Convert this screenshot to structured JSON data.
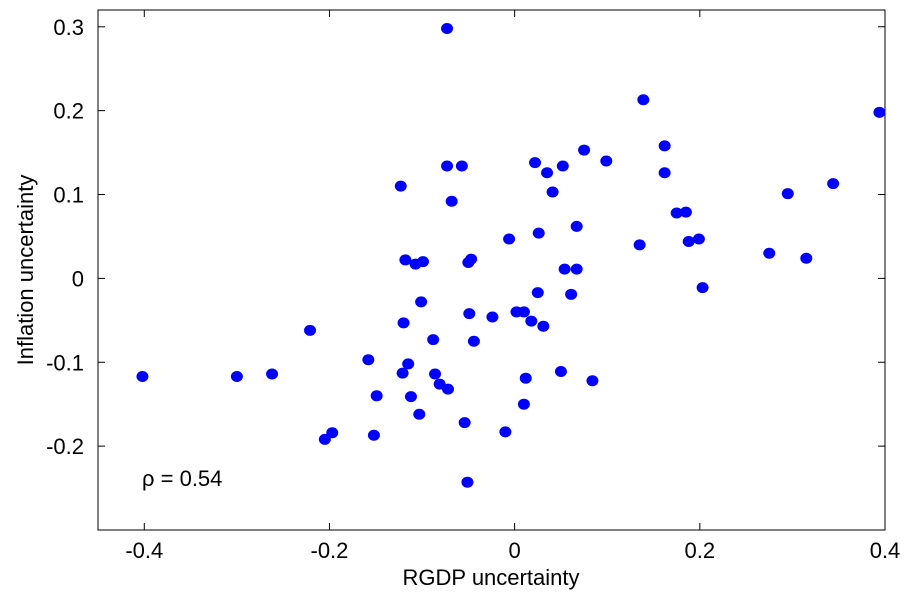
{
  "chart_data": {
    "type": "scatter",
    "xlabel": "RGDP uncertainty",
    "ylabel": "Inflation uncertainty",
    "annotation": "ρ = 0.54",
    "color": "#0000ff",
    "xlim": [
      -0.45,
      0.4
    ],
    "ylim": [
      -0.3,
      0.32
    ],
    "xticks": [
      -0.4,
      -0.2,
      0,
      0.2,
      0.4
    ],
    "yticks": [
      -0.2,
      -0.1,
      0,
      0.1,
      0.2,
      0.3
    ],
    "x": [
      -0.073,
      0.139,
      0.394,
      0.162,
      0.075,
      0.099,
      0.022,
      0.052,
      -0.073,
      -0.057,
      0.035,
      0.162,
      0.344,
      -0.123,
      0.041,
      0.295,
      -0.068,
      0.175,
      0.185,
      0.067,
      0.026,
      0.188,
      0.199,
      0.135,
      -0.006,
      -0.047,
      -0.05,
      -0.118,
      -0.107,
      -0.099,
      0.275,
      0.315,
      0.054,
      0.067,
      0.203,
      0.025,
      0.061,
      -0.101,
      -0.221,
      -0.049,
      0.002,
      0.01,
      -0.024,
      -0.12,
      0.018,
      0.031,
      -0.088,
      -0.044,
      -0.158,
      -0.115,
      -0.121,
      -0.086,
      0.05,
      0.084,
      0.012,
      -0.402,
      -0.3,
      -0.262,
      -0.081,
      -0.072,
      -0.149,
      -0.112,
      0.01,
      -0.103,
      -0.197,
      -0.205,
      -0.152,
      -0.01,
      -0.054,
      -0.051
    ],
    "y": [
      0.298,
      0.213,
      0.198,
      0.158,
      0.153,
      0.14,
      0.138,
      0.134,
      0.134,
      0.134,
      0.126,
      0.126,
      0.113,
      0.11,
      0.103,
      0.101,
      0.092,
      0.078,
      0.079,
      0.062,
      0.054,
      0.044,
      0.047,
      0.04,
      0.047,
      0.023,
      0.019,
      0.022,
      0.017,
      0.02,
      0.03,
      0.024,
      0.011,
      0.011,
      -0.011,
      -0.017,
      -0.019,
      -0.028,
      -0.062,
      -0.042,
      -0.04,
      -0.04,
      -0.046,
      -0.053,
      -0.051,
      -0.057,
      -0.073,
      -0.075,
      -0.097,
      -0.102,
      -0.113,
      -0.114,
      -0.111,
      -0.122,
      -0.119,
      -0.117,
      -0.117,
      -0.114,
      -0.126,
      -0.132,
      -0.14,
      -0.141,
      -0.15,
      -0.162,
      -0.184,
      -0.192,
      -0.187,
      -0.183,
      -0.172,
      -0.243
    ]
  }
}
